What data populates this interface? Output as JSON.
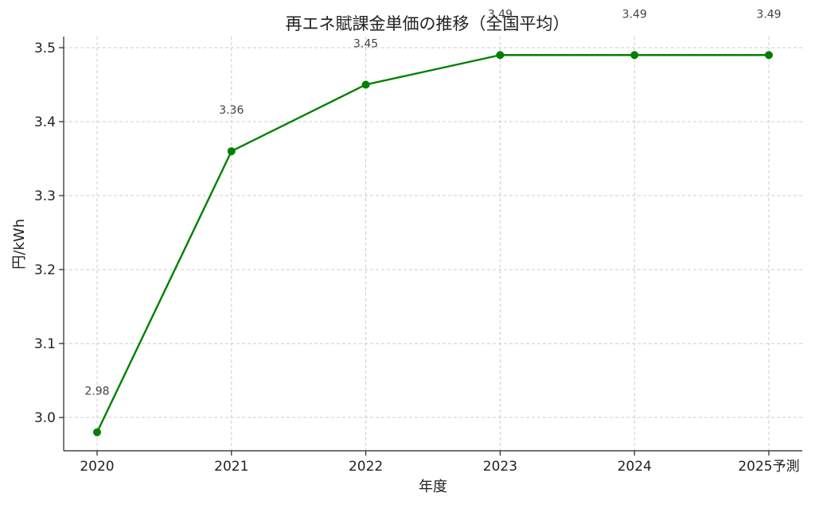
{
  "chart_data": {
    "type": "line",
    "title": "再エネ賦課金単価の推移（全国平均）",
    "xlabel": "年度",
    "ylabel": "円/kWh",
    "categories": [
      "2020",
      "2021",
      "2022",
      "2023",
      "2024",
      "2025予測"
    ],
    "series": [
      {
        "values": [
          2.98,
          3.36,
          3.45,
          3.49,
          3.49,
          3.49
        ],
        "data_labels": [
          "2.98",
          "3.36",
          "3.45",
          "3.49",
          "3.49",
          "3.49"
        ],
        "color": "#008000",
        "marker": "circle"
      }
    ],
    "ylim": [
      2.955,
      3.515
    ],
    "yticks": [
      "3.0",
      "3.1",
      "3.2",
      "3.3",
      "3.4",
      "3.5"
    ],
    "grid": true,
    "legend": "none"
  }
}
